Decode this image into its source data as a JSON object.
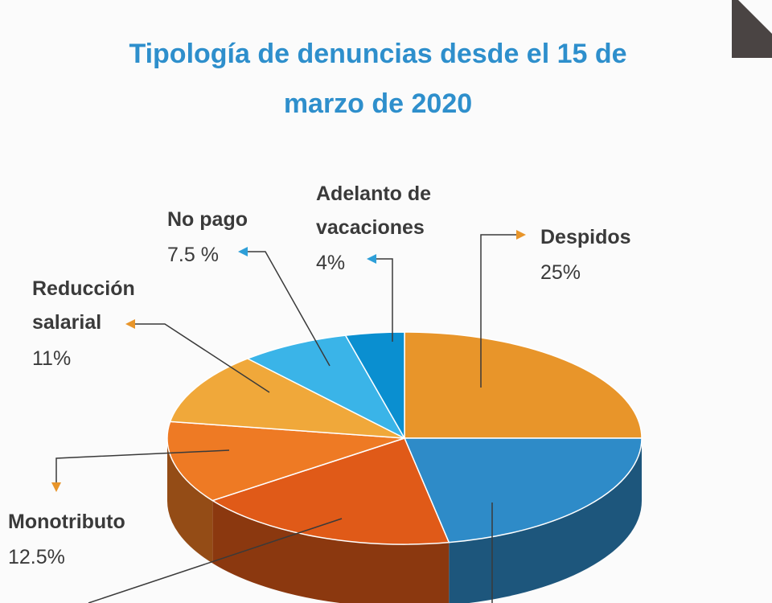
{
  "chart_data": {
    "type": "pie3d",
    "title": "Tipología de denuncias desde el 15 de marzo de 2020",
    "categories": [
      "Despidos",
      null,
      null,
      "Monotributo",
      "Reducción salarial",
      "No pago",
      "Adelanto de vacaciones"
    ],
    "values": [
      25,
      22,
      18,
      12.5,
      11,
      7.5,
      4
    ],
    "value_labels": [
      "25%",
      null,
      null,
      "12.5%",
      "11%",
      "7.5 %",
      "4%"
    ],
    "colors": [
      "#e8952a",
      "#2e8bc8",
      "#e05a18",
      "#ee7a24",
      "#f0a83a",
      "#3ab4e8",
      "#0a8fd0"
    ]
  }
}
